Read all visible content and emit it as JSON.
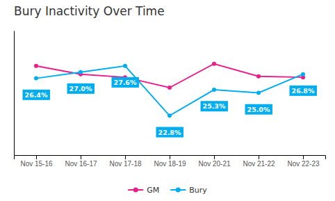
{
  "chart_data": {
    "type": "line",
    "title": "Bury Inactivity Over Time",
    "categories": [
      "Nov 15-16",
      "Nov 16-17",
      "Nov 17-18",
      "Nov 18-19",
      "Nov 20-21",
      "Nov 21-22",
      "Nov 22-23"
    ],
    "series": [
      {
        "name": "GM",
        "color": "#E91E8C",
        "marker": "circle",
        "values": [
          27.6,
          26.8,
          26.5,
          25.5,
          27.8,
          26.6,
          26.5
        ]
      },
      {
        "name": "Bury",
        "color": "#00AEEF",
        "marker": "circle",
        "data_labels": true,
        "values": [
          26.4,
          27.0,
          27.6,
          22.8,
          25.3,
          25.0,
          26.8
        ],
        "value_labels": [
          "26.4%",
          "27.0%",
          "27.6%",
          "22.8%",
          "25.3%",
          "25.0%",
          "26.8%"
        ]
      }
    ],
    "ylim": [
      19,
      31
    ],
    "grid": false,
    "legend": "bottom",
    "tick_labels": "x"
  }
}
